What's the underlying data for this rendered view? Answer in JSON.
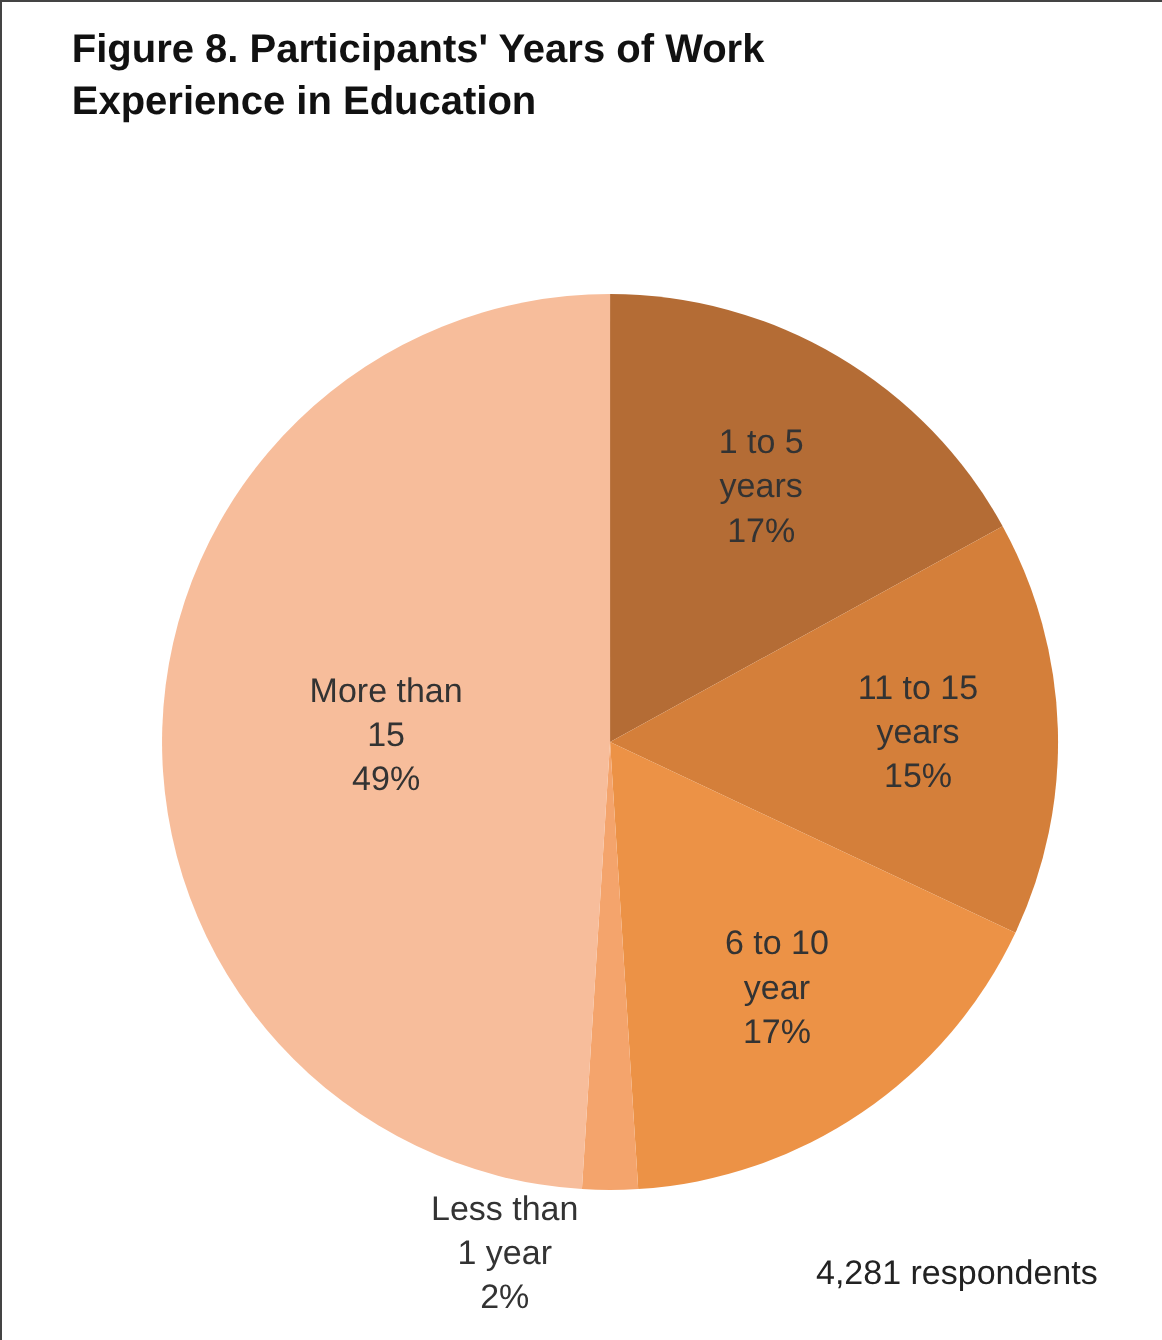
{
  "chart_data": {
    "type": "pie",
    "title": "Figure 8. Participants' Years of Work Experience in Education",
    "categories": [
      "1 to 5 years",
      "11 to 15 years",
      "6 to 10 year",
      "Less than 1 year",
      "More than 15"
    ],
    "values": [
      17,
      15,
      17,
      2,
      49
    ],
    "value_labels": [
      "17%",
      "15%",
      "17%",
      "2%",
      "49%"
    ],
    "colors": [
      "#b46c35",
      "#d47f3a",
      "#ec9246",
      "#f4a46c",
      "#f7bd9b"
    ],
    "legend": false,
    "annotations": [
      "4,281 respondents"
    ]
  }
}
